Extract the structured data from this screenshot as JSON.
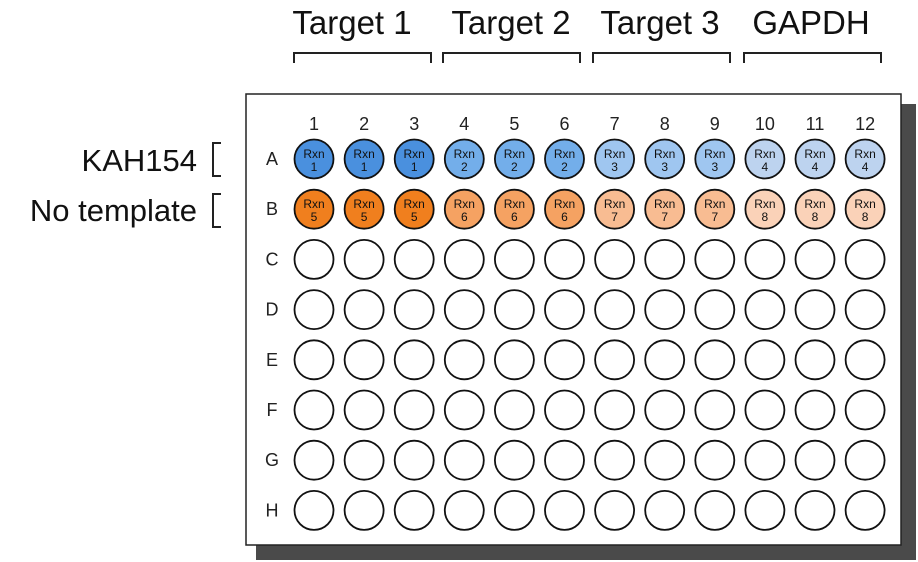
{
  "plate": {
    "columns": [
      "1",
      "2",
      "3",
      "4",
      "5",
      "6",
      "7",
      "8",
      "9",
      "10",
      "11",
      "12"
    ],
    "rows": [
      "A",
      "B",
      "C",
      "D",
      "E",
      "F",
      "G",
      "H"
    ]
  },
  "targets": [
    {
      "label": "Target 1"
    },
    {
      "label": "Target 2"
    },
    {
      "label": "Target 3"
    },
    {
      "label": "GAPDH"
    }
  ],
  "samples": [
    {
      "label": "KAH154"
    },
    {
      "label": "No template"
    }
  ],
  "well_text": "Rxn",
  "filled_wells": [
    {
      "row": "A",
      "rxn": "1",
      "col_start": 1,
      "col_end": 3,
      "color": "#4a90de"
    },
    {
      "row": "A",
      "rxn": "2",
      "col_start": 4,
      "col_end": 6,
      "color": "#73aeea"
    },
    {
      "row": "A",
      "rxn": "3",
      "col_start": 7,
      "col_end": 9,
      "color": "#9fc6f0"
    },
    {
      "row": "A",
      "rxn": "4",
      "col_start": 10,
      "col_end": 12,
      "color": "#bdd3ef"
    },
    {
      "row": "B",
      "rxn": "5",
      "col_start": 1,
      "col_end": 3,
      "color": "#f07f1e"
    },
    {
      "row": "B",
      "rxn": "6",
      "col_start": 4,
      "col_end": 6,
      "color": "#f5a262"
    },
    {
      "row": "B",
      "rxn": "7",
      "col_start": 7,
      "col_end": 9,
      "color": "#f8bc92"
    },
    {
      "row": "B",
      "rxn": "8",
      "col_start": 10,
      "col_end": 12,
      "color": "#fad2b8"
    }
  ],
  "colors": {
    "empty_well": "#ffffff",
    "plate_border": "#222222",
    "plate_shadow": "#4a4a4a"
  }
}
